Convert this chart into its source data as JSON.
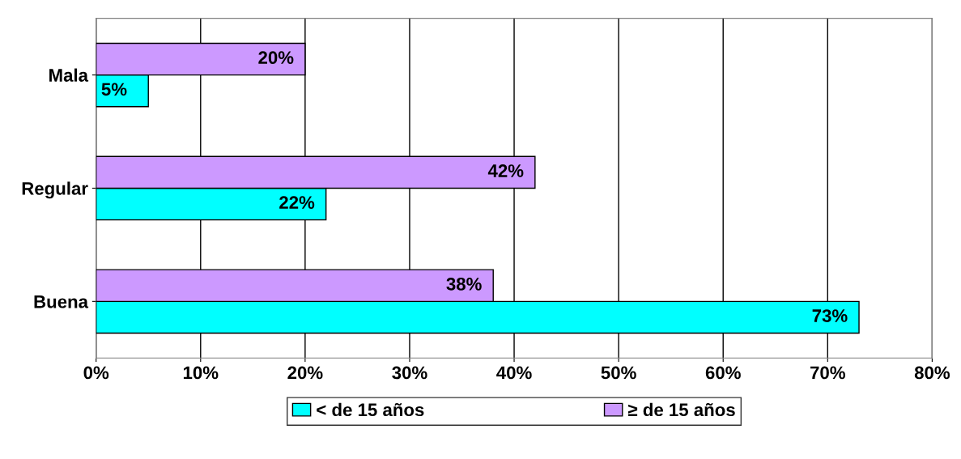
{
  "chart_data": {
    "type": "bar",
    "orientation": "horizontal",
    "categories": [
      "Mala",
      "Regular",
      "Buena"
    ],
    "series": [
      {
        "name": "< de 15 años",
        "color": "#00ffff",
        "values": [
          5,
          22,
          73
        ],
        "value_labels": [
          "5%",
          "22%",
          "73%"
        ]
      },
      {
        "name": "≥ de 15 años",
        "color": "#cc99ff",
        "values": [
          20,
          42,
          38
        ],
        "value_labels": [
          "20%",
          "42%",
          "38%"
        ]
      }
    ],
    "xlim": [
      0,
      80
    ],
    "xticks": [
      {
        "value": 0,
        "label": "0%"
      },
      {
        "value": 10,
        "label": "10%"
      },
      {
        "value": 20,
        "label": "20%"
      },
      {
        "value": 30,
        "label": "30%"
      },
      {
        "value": 40,
        "label": "40%"
      },
      {
        "value": 50,
        "label": "50%"
      },
      {
        "value": 60,
        "label": "60%"
      },
      {
        "value": 70,
        "label": "70%"
      },
      {
        "value": 80,
        "label": "80%"
      }
    ],
    "grid": "x",
    "legend": "bottom"
  }
}
